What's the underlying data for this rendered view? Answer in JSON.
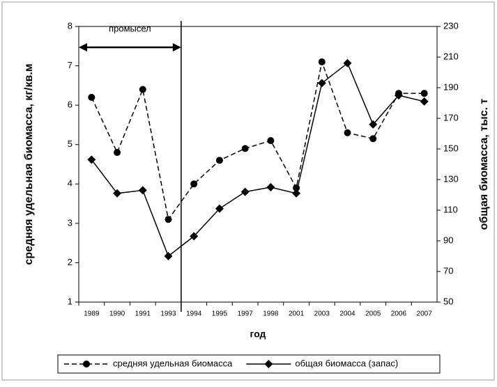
{
  "chart_data": {
    "type": "line",
    "categories": [
      "1989",
      "1990",
      "1991",
      "1993",
      "1994",
      "1995",
      "1997",
      "1998",
      "2001",
      "2003",
      "2004",
      "2005",
      "2006",
      "2007"
    ],
    "series": [
      {
        "name": "средняя удельная биомасса",
        "color": "#000000",
        "marker": "circle",
        "dash": true,
        "values": [
          6.2,
          4.8,
          6.4,
          3.1,
          4.0,
          4.6,
          4.9,
          5.1,
          3.9,
          7.1,
          5.3,
          5.15,
          6.3,
          6.3
        ]
      },
      {
        "name": "общая биомасса (запас)",
        "color": "#000000",
        "marker": "diamond",
        "dash": false,
        "axis": "y2",
        "values": [
          143,
          121,
          123,
          80,
          93,
          111,
          122,
          125,
          121,
          193,
          206,
          166,
          185,
          181
        ]
      }
    ],
    "ylim": [
      1,
      8
    ],
    "yticks": [
      1,
      2,
      3,
      4,
      5,
      6,
      7,
      8
    ],
    "y2lim": [
      50,
      230
    ],
    "y2ticks": [
      50,
      70,
      90,
      110,
      130,
      150,
      170,
      190,
      210,
      230
    ],
    "xlabel": "год",
    "ylabel": "средняя удельная биомасса, кг/кв.м",
    "y2label": "общая биомасса, тыс. т",
    "annotation": "промысел",
    "legend": "bottom"
  }
}
